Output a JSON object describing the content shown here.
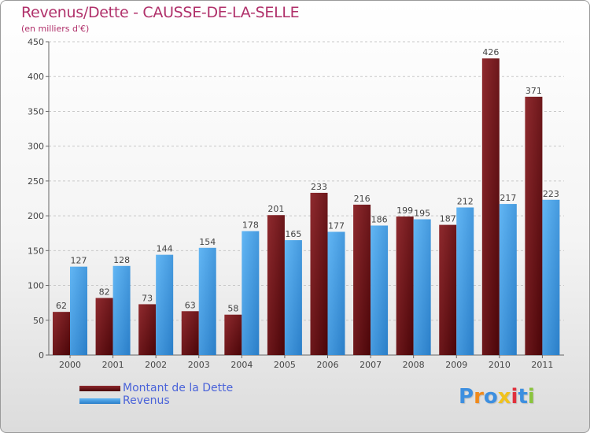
{
  "title": "Revenus/Dette - CAUSSE-DE-LA-SELLE",
  "subtitle": "(en milliers d'€)",
  "brand": "Proxiti",
  "colors": {
    "dette": "#7a1b20",
    "dette_dark": "#4a0508",
    "revenus": "#5aaef0",
    "revenus_dark": "#2a7ec8",
    "title": "#b0306a",
    "legend_text": "#4a63d9"
  },
  "chart_data": {
    "type": "bar",
    "title": "Revenus/Dette - CAUSSE-DE-LA-SELLE",
    "ylabel": "(en milliers d'€)",
    "xlabel": "",
    "ylim": [
      0,
      450
    ],
    "yticks": [
      0,
      50,
      100,
      150,
      200,
      250,
      300,
      350,
      400,
      450
    ],
    "grid": true,
    "legend_position": "bottom-left",
    "categories": [
      "2000",
      "2001",
      "2002",
      "2003",
      "2004",
      "2005",
      "2006",
      "2007",
      "2008",
      "2009",
      "2010",
      "2011"
    ],
    "series": [
      {
        "name": "Montant de la Dette",
        "values": [
          62,
          82,
          73,
          63,
          58,
          201,
          233,
          216,
          199,
          187,
          426,
          371
        ]
      },
      {
        "name": "Revenus",
        "values": [
          127,
          128,
          144,
          154,
          178,
          165,
          177,
          186,
          195,
          212,
          217,
          223
        ]
      }
    ]
  }
}
